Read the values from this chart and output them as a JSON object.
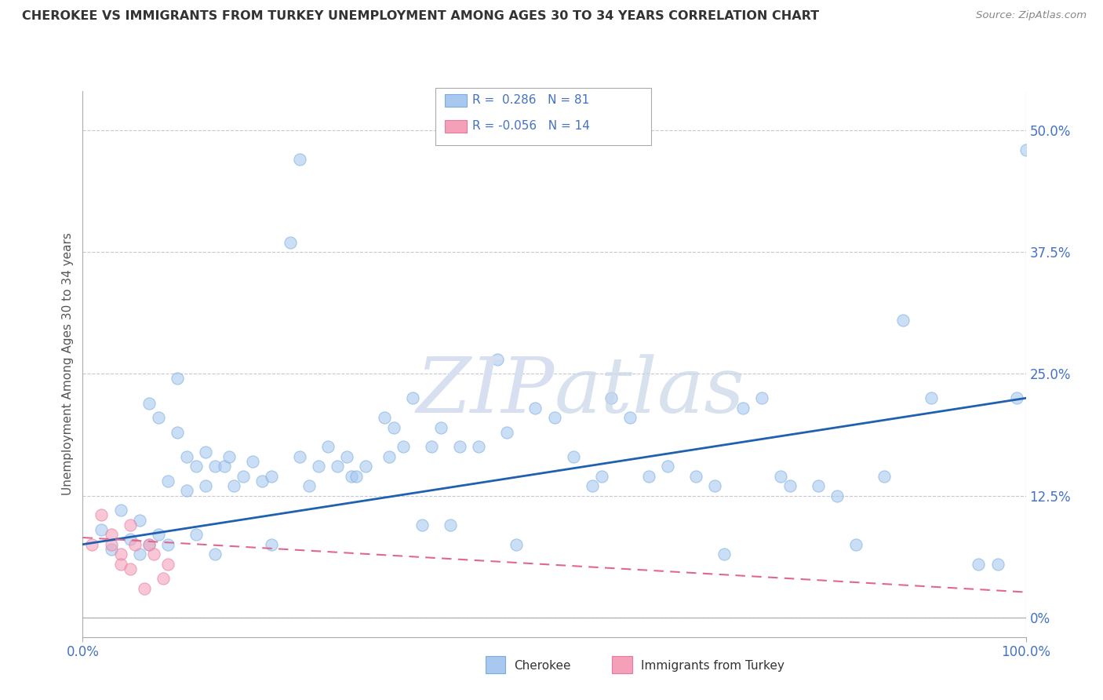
{
  "title": "CHEROKEE VS IMMIGRANTS FROM TURKEY UNEMPLOYMENT AMONG AGES 30 TO 34 YEARS CORRELATION CHART",
  "source": "Source: ZipAtlas.com",
  "ylabel": "Unemployment Among Ages 30 to 34 years",
  "xlim": [
    0.0,
    1.0
  ],
  "ylim": [
    -0.02,
    0.54
  ],
  "plot_ylim": [
    0.0,
    0.5
  ],
  "ytick_labels": [
    "0%",
    "12.5%",
    "25.0%",
    "37.5%",
    "50.0%"
  ],
  "ytick_values": [
    0.0,
    0.125,
    0.25,
    0.375,
    0.5
  ],
  "xtick_values": [
    0.0,
    1.0
  ],
  "xtick_labels": [
    "0.0%",
    "100.0%"
  ],
  "grid_color": "#c8c8d4",
  "background_color": "#ffffff",
  "legend_r1": "R =  0.286",
  "legend_n1": "N = 81",
  "legend_r2": "R = -0.056",
  "legend_n2": "N = 14",
  "legend_label1": "Cherokee",
  "legend_label2": "Immigrants from Turkey",
  "blue_color": "#a8c8f0",
  "pink_color": "#f4a0b8",
  "blue_edge_color": "#7aacdf",
  "pink_edge_color": "#e878a0",
  "blue_line_color": "#2060b0",
  "pink_line_color": "#e06890",
  "blue_scatter": [
    [
      0.02,
      0.09
    ],
    [
      0.03,
      0.07
    ],
    [
      0.04,
      0.11
    ],
    [
      0.05,
      0.08
    ],
    [
      0.06,
      0.1
    ],
    [
      0.06,
      0.065
    ],
    [
      0.07,
      0.22
    ],
    [
      0.07,
      0.075
    ],
    [
      0.08,
      0.205
    ],
    [
      0.08,
      0.085
    ],
    [
      0.09,
      0.14
    ],
    [
      0.09,
      0.075
    ],
    [
      0.1,
      0.245
    ],
    [
      0.1,
      0.19
    ],
    [
      0.11,
      0.165
    ],
    [
      0.11,
      0.13
    ],
    [
      0.12,
      0.155
    ],
    [
      0.12,
      0.085
    ],
    [
      0.13,
      0.17
    ],
    [
      0.13,
      0.135
    ],
    [
      0.14,
      0.155
    ],
    [
      0.14,
      0.065
    ],
    [
      0.15,
      0.155
    ],
    [
      0.155,
      0.165
    ],
    [
      0.16,
      0.135
    ],
    [
      0.17,
      0.145
    ],
    [
      0.18,
      0.16
    ],
    [
      0.19,
      0.14
    ],
    [
      0.2,
      0.145
    ],
    [
      0.2,
      0.075
    ],
    [
      0.22,
      0.385
    ],
    [
      0.23,
      0.165
    ],
    [
      0.24,
      0.135
    ],
    [
      0.25,
      0.155
    ],
    [
      0.26,
      0.175
    ],
    [
      0.27,
      0.155
    ],
    [
      0.28,
      0.165
    ],
    [
      0.285,
      0.145
    ],
    [
      0.29,
      0.145
    ],
    [
      0.3,
      0.155
    ],
    [
      0.32,
      0.205
    ],
    [
      0.325,
      0.165
    ],
    [
      0.33,
      0.195
    ],
    [
      0.34,
      0.175
    ],
    [
      0.35,
      0.225
    ],
    [
      0.36,
      0.095
    ],
    [
      0.37,
      0.175
    ],
    [
      0.38,
      0.195
    ],
    [
      0.39,
      0.095
    ],
    [
      0.4,
      0.175
    ],
    [
      0.42,
      0.175
    ],
    [
      0.44,
      0.265
    ],
    [
      0.45,
      0.19
    ],
    [
      0.46,
      0.075
    ],
    [
      0.48,
      0.215
    ],
    [
      0.5,
      0.205
    ],
    [
      0.52,
      0.165
    ],
    [
      0.54,
      0.135
    ],
    [
      0.55,
      0.145
    ],
    [
      0.56,
      0.225
    ],
    [
      0.58,
      0.205
    ],
    [
      0.6,
      0.145
    ],
    [
      0.62,
      0.155
    ],
    [
      0.65,
      0.145
    ],
    [
      0.67,
      0.135
    ],
    [
      0.68,
      0.065
    ],
    [
      0.7,
      0.215
    ],
    [
      0.72,
      0.225
    ],
    [
      0.74,
      0.145
    ],
    [
      0.75,
      0.135
    ],
    [
      0.78,
      0.135
    ],
    [
      0.8,
      0.125
    ],
    [
      0.82,
      0.075
    ],
    [
      0.85,
      0.145
    ],
    [
      0.87,
      0.305
    ],
    [
      0.9,
      0.225
    ],
    [
      0.95,
      0.055
    ],
    [
      0.97,
      0.055
    ],
    [
      0.99,
      0.225
    ],
    [
      1.0,
      0.48
    ],
    [
      0.23,
      0.47
    ]
  ],
  "pink_scatter": [
    [
      0.01,
      0.075
    ],
    [
      0.02,
      0.105
    ],
    [
      0.03,
      0.085
    ],
    [
      0.03,
      0.075
    ],
    [
      0.04,
      0.065
    ],
    [
      0.04,
      0.055
    ],
    [
      0.05,
      0.095
    ],
    [
      0.05,
      0.05
    ],
    [
      0.055,
      0.075
    ],
    [
      0.065,
      0.03
    ],
    [
      0.07,
      0.075
    ],
    [
      0.075,
      0.065
    ],
    [
      0.085,
      0.04
    ],
    [
      0.09,
      0.055
    ]
  ],
  "blue_line": [
    [
      0.0,
      0.075
    ],
    [
      1.0,
      0.225
    ]
  ],
  "pink_line": [
    [
      0.0,
      0.082
    ],
    [
      1.0,
      0.026
    ]
  ]
}
